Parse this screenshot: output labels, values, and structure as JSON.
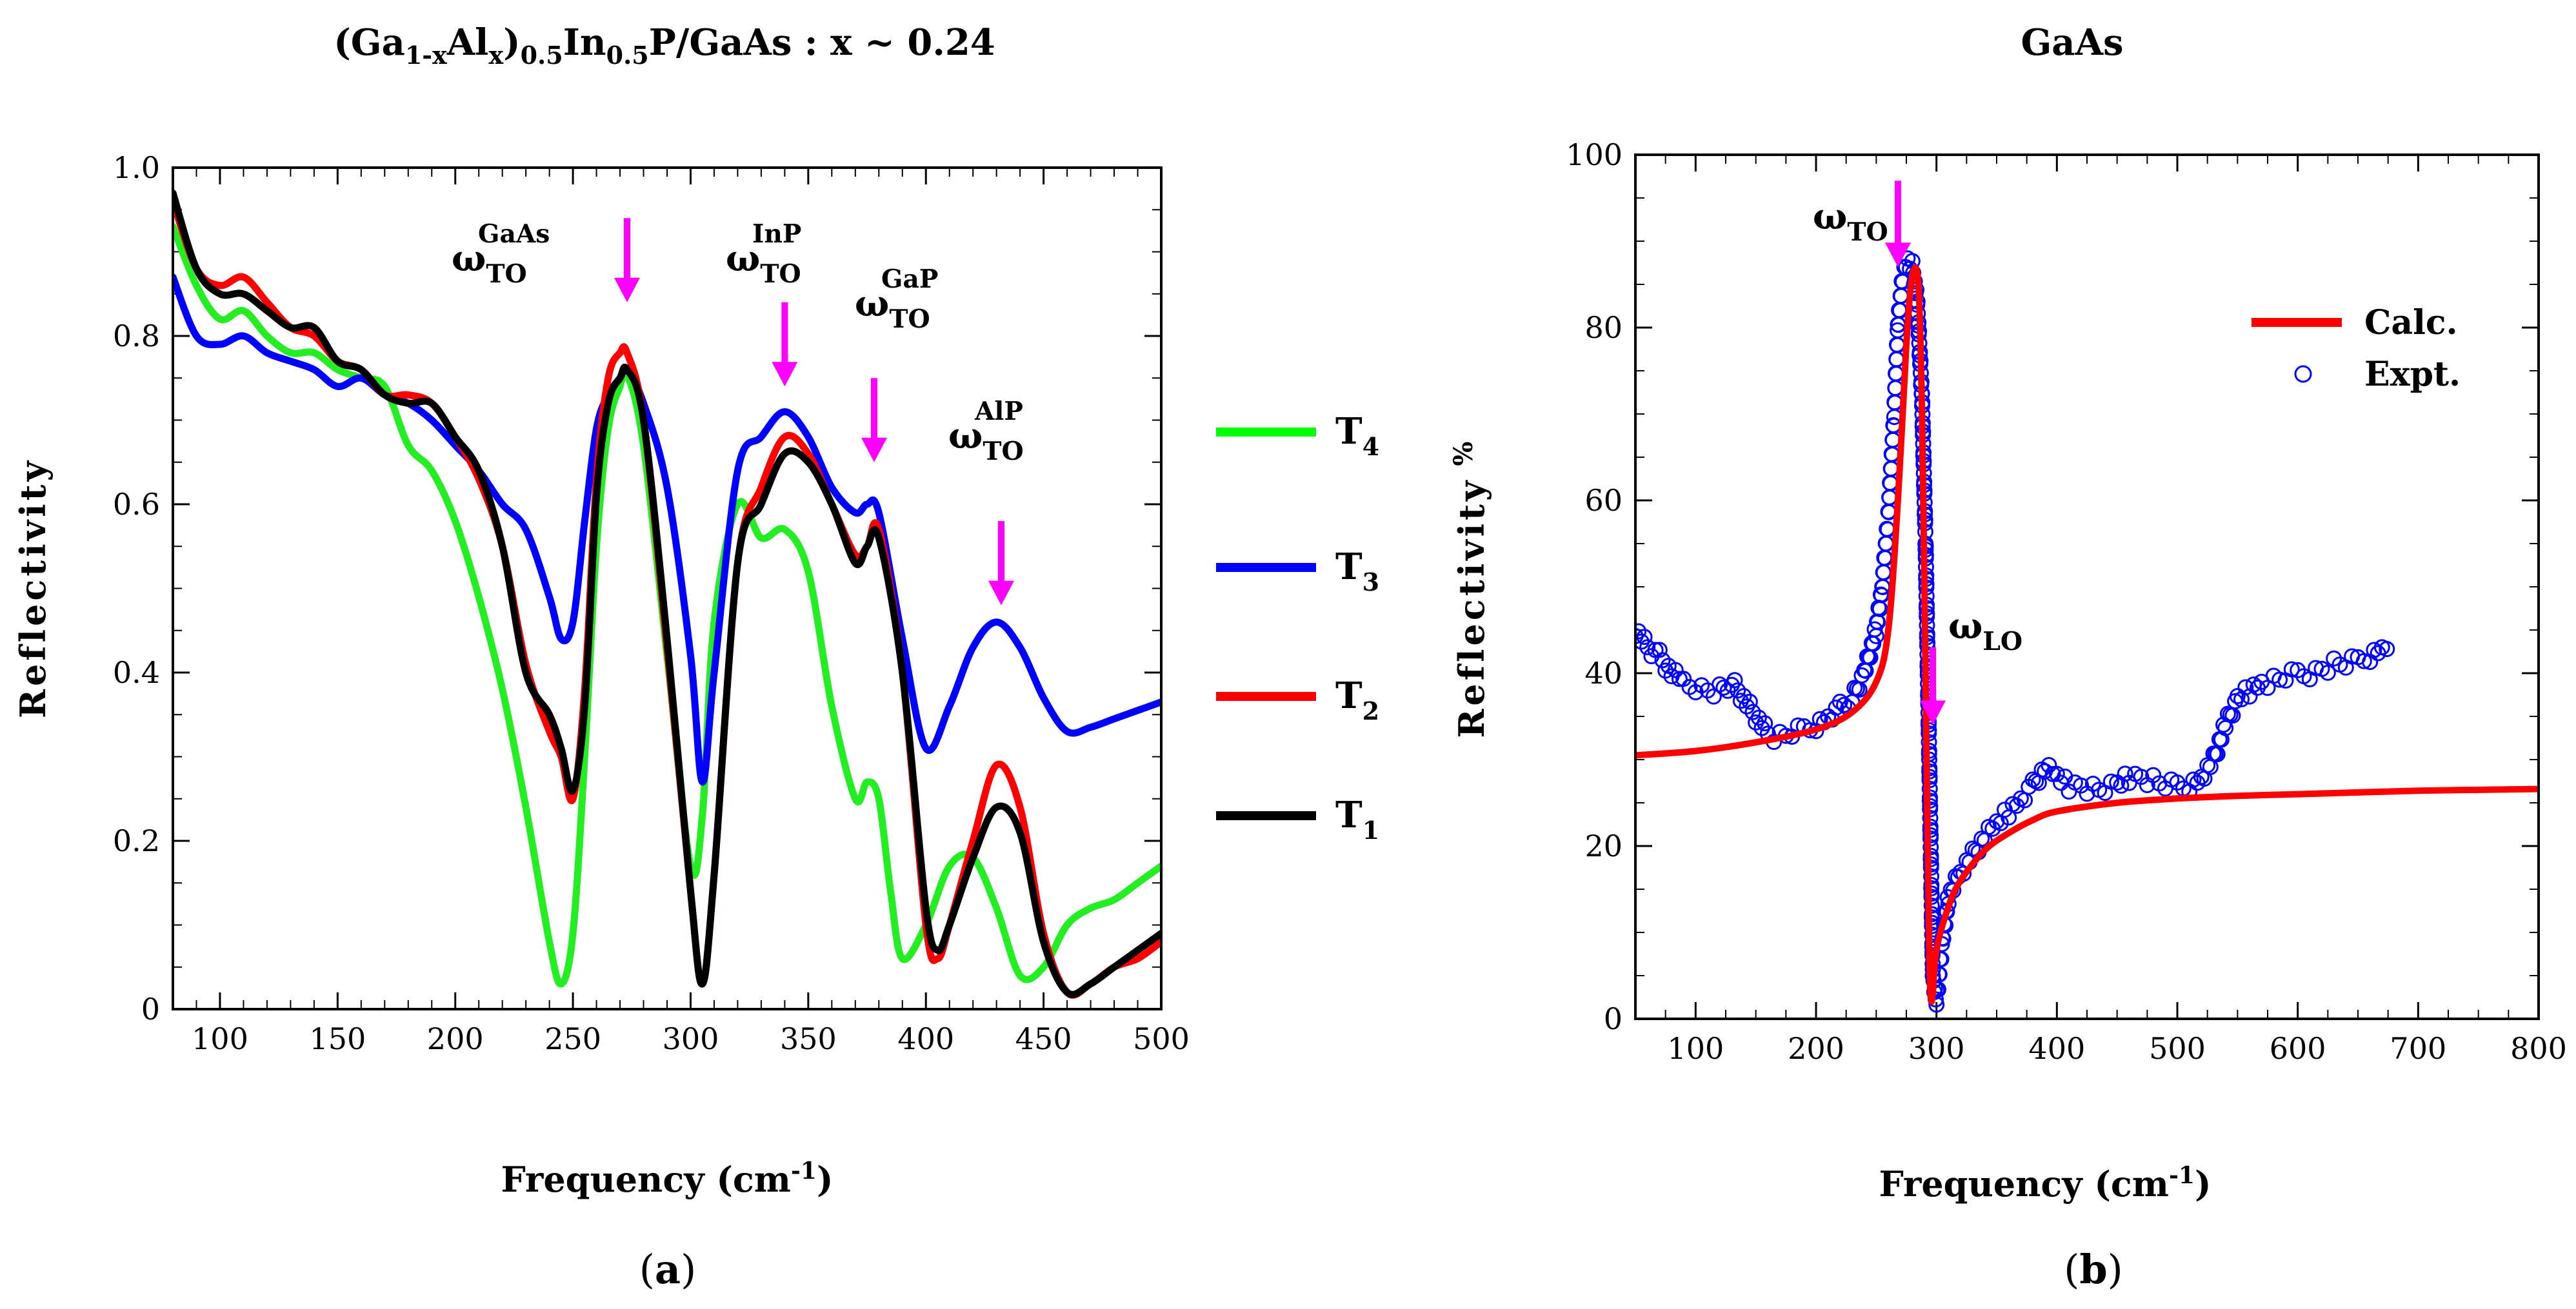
{
  "chart_data": [
    {
      "type": "line",
      "title": "(Ga1-xAlx)0.5In0.5P/GaAs : x ~ 0.24",
      "title_parts": {
        "a": "(Ga",
        "b": "1-x",
        "c": "Al",
        "d": "x",
        "e": ")",
        "f": "0.5",
        "g": "In",
        "h": "0.5",
        "i": "P/GaAs : x ~ 0.24"
      },
      "xlabel": "Frequency (cm-1)",
      "xlabel_parts": {
        "main": "Frequency (cm",
        "sup": "-1",
        "end": ")"
      },
      "ylabel": "Reflectivity",
      "xlim": [
        80,
        500
      ],
      "ylim": [
        0,
        1.0
      ],
      "xticks": [
        100,
        150,
        200,
        250,
        300,
        350,
        400,
        450,
        500
      ],
      "yticks": [
        "0",
        "0.2",
        "0.4",
        "0.6",
        "0.8",
        "1.0"
      ],
      "ytick_values": [
        0,
        0.2,
        0.4,
        0.6,
        0.8,
        1.0
      ],
      "panel_label": "(a)",
      "panel_letter": "a",
      "annotations": [
        {
          "base": "ω",
          "sub": "TO",
          "sup": "GaAs",
          "arrow_x": 273,
          "arrow_from": 0.94,
          "arrow_to": 0.84
        },
        {
          "base": "ω",
          "sub": "TO",
          "sup": "InP",
          "arrow_x": 340,
          "arrow_from": 0.84,
          "arrow_to": 0.74
        },
        {
          "base": "ω",
          "sub": "TO",
          "sup": "GaP",
          "arrow_x": 378,
          "arrow_from": 0.75,
          "arrow_to": 0.65
        },
        {
          "base": "ω",
          "sub": "TO",
          "sup": "AlP",
          "arrow_x": 432,
          "arrow_from": 0.58,
          "arrow_to": 0.48
        }
      ],
      "arrow_color": "#ff00ff",
      "legend": [
        {
          "name": "T",
          "sub": "4",
          "color": "#00ff00"
        },
        {
          "name": "T",
          "sub": "3",
          "color": "#0000ff"
        },
        {
          "name": "T",
          "sub": "2",
          "color": "#ff0000"
        },
        {
          "name": "T",
          "sub": "1",
          "color": "#000000"
        }
      ],
      "series": [
        {
          "name": "T4",
          "color": "#22ee22",
          "x": [
            80,
            90,
            100,
            110,
            120,
            130,
            140,
            150,
            160,
            170,
            180,
            190,
            200,
            210,
            220,
            230,
            240,
            245,
            250,
            255,
            260,
            265,
            270,
            273,
            280,
            290,
            300,
            305,
            310,
            320,
            330,
            340,
            350,
            360,
            370,
            375,
            380,
            385,
            390,
            400,
            410,
            420,
            430,
            440,
            450,
            460,
            470,
            480,
            490,
            500
          ],
          "y": [
            0.93,
            0.86,
            0.82,
            0.83,
            0.8,
            0.78,
            0.78,
            0.76,
            0.75,
            0.74,
            0.67,
            0.64,
            0.58,
            0.49,
            0.38,
            0.24,
            0.08,
            0.03,
            0.09,
            0.3,
            0.55,
            0.69,
            0.74,
            0.755,
            0.67,
            0.42,
            0.17,
            0.23,
            0.46,
            0.6,
            0.56,
            0.57,
            0.52,
            0.36,
            0.25,
            0.27,
            0.25,
            0.14,
            0.06,
            0.1,
            0.17,
            0.18,
            0.12,
            0.04,
            0.05,
            0.1,
            0.12,
            0.13,
            0.15,
            0.17
          ]
        },
        {
          "name": "T3",
          "color": "#0000ff",
          "x": [
            80,
            90,
            100,
            110,
            120,
            130,
            140,
            150,
            160,
            170,
            180,
            190,
            200,
            210,
            220,
            230,
            240,
            245,
            250,
            255,
            260,
            265,
            270,
            273,
            280,
            290,
            300,
            305,
            310,
            320,
            330,
            340,
            350,
            360,
            370,
            375,
            380,
            390,
            400,
            410,
            420,
            430,
            440,
            450,
            460,
            470,
            480,
            490,
            500
          ],
          "y": [
            0.87,
            0.8,
            0.79,
            0.8,
            0.78,
            0.77,
            0.76,
            0.74,
            0.75,
            0.73,
            0.72,
            0.7,
            0.67,
            0.64,
            0.6,
            0.57,
            0.49,
            0.44,
            0.46,
            0.58,
            0.69,
            0.73,
            0.75,
            0.76,
            0.72,
            0.62,
            0.42,
            0.27,
            0.4,
            0.64,
            0.68,
            0.71,
            0.68,
            0.62,
            0.59,
            0.6,
            0.59,
            0.44,
            0.31,
            0.36,
            0.43,
            0.46,
            0.43,
            0.37,
            0.33,
            0.335,
            0.345,
            0.355,
            0.365
          ]
        },
        {
          "name": "T2",
          "color": "#ff0000",
          "x": [
            80,
            90,
            100,
            110,
            120,
            130,
            140,
            150,
            160,
            170,
            180,
            190,
            200,
            210,
            220,
            230,
            240,
            245,
            250,
            255,
            260,
            265,
            270,
            273,
            280,
            290,
            300,
            305,
            310,
            320,
            330,
            340,
            350,
            360,
            370,
            375,
            380,
            390,
            400,
            405,
            410,
            420,
            430,
            440,
            450,
            460,
            470,
            480,
            490,
            500
          ],
          "y": [
            0.96,
            0.88,
            0.86,
            0.87,
            0.84,
            0.81,
            0.8,
            0.77,
            0.76,
            0.73,
            0.73,
            0.72,
            0.68,
            0.63,
            0.55,
            0.41,
            0.33,
            0.3,
            0.25,
            0.38,
            0.63,
            0.75,
            0.78,
            0.78,
            0.7,
            0.43,
            0.14,
            0.03,
            0.16,
            0.53,
            0.62,
            0.68,
            0.66,
            0.6,
            0.54,
            0.55,
            0.57,
            0.4,
            0.1,
            0.06,
            0.1,
            0.2,
            0.29,
            0.24,
            0.09,
            0.02,
            0.03,
            0.05,
            0.06,
            0.08
          ]
        },
        {
          "name": "T1",
          "color": "#000000",
          "x": [
            80,
            90,
            100,
            110,
            120,
            130,
            140,
            150,
            160,
            170,
            180,
            190,
            200,
            210,
            220,
            230,
            240,
            245,
            250,
            255,
            260,
            265,
            270,
            273,
            280,
            290,
            300,
            305,
            310,
            320,
            330,
            340,
            350,
            360,
            370,
            375,
            380,
            390,
            400,
            405,
            410,
            420,
            430,
            440,
            450,
            460,
            470,
            480,
            490,
            500
          ],
          "y": [
            0.97,
            0.88,
            0.85,
            0.85,
            0.83,
            0.81,
            0.81,
            0.77,
            0.76,
            0.73,
            0.72,
            0.72,
            0.68,
            0.64,
            0.55,
            0.4,
            0.35,
            0.31,
            0.26,
            0.36,
            0.61,
            0.72,
            0.75,
            0.76,
            0.7,
            0.44,
            0.14,
            0.03,
            0.16,
            0.53,
            0.6,
            0.66,
            0.65,
            0.6,
            0.53,
            0.55,
            0.56,
            0.4,
            0.12,
            0.07,
            0.1,
            0.18,
            0.24,
            0.21,
            0.08,
            0.02,
            0.03,
            0.05,
            0.07,
            0.09
          ]
        }
      ]
    },
    {
      "type": "line",
      "title": "GaAs",
      "xlabel": "Frequency (cm-1)",
      "xlabel_parts": {
        "main": "Frequency (cm",
        "sup": "-1",
        "end": ")"
      },
      "ylabel": "Reflectivity %",
      "ylabel_parts": {
        "main": "Reflectivity",
        "unit": "%"
      },
      "xlim": [
        50,
        800
      ],
      "ylim": [
        0,
        100
      ],
      "xticks": [
        100,
        200,
        300,
        400,
        500,
        600,
        700,
        800
      ],
      "yticks": [
        "0",
        "20",
        "40",
        "60",
        "80",
        "100"
      ],
      "ytick_values": [
        0,
        20,
        40,
        60,
        80,
        100
      ],
      "panel_label": "(b)",
      "panel_letter": "b",
      "annotations": [
        {
          "base": "ω",
          "sub": "TO",
          "arrow_x": 268,
          "arrow_from": 97,
          "arrow_to": 87
        },
        {
          "base": "ω",
          "sub": "LO",
          "arrow_x": 297,
          "arrow_from": 43,
          "arrow_to": 34
        }
      ],
      "arrow_color": "#ff00ff",
      "legend": [
        {
          "name": "Calc.",
          "color": "#ff0000",
          "marker": "line"
        },
        {
          "name": "Expt.",
          "color": "#0000ff",
          "marker": "circle"
        }
      ],
      "series": [
        {
          "name": "Calc.",
          "color": "#ff0000",
          "x": [
            50,
            100,
            150,
            200,
            230,
            250,
            260,
            268,
            275,
            280,
            285,
            288,
            290,
            292,
            294,
            296,
            300,
            310,
            320,
            340,
            360,
            380,
            400,
            450,
            500,
            550,
            600,
            650,
            700,
            750,
            800
          ],
          "y": [
            30.5,
            31.0,
            32.0,
            33.5,
            35.5,
            39.0,
            45.0,
            60.0,
            78.0,
            86.0,
            85.0,
            70.0,
            50.0,
            28.0,
            8.0,
            2.0,
            8.0,
            13.0,
            16.0,
            19.5,
            21.5,
            23.0,
            24.0,
            25.0,
            25.5,
            25.8,
            26.0,
            26.2,
            26.4,
            26.5,
            26.6
          ]
        },
        {
          "name": "Expt.",
          "color": "#0000ff",
          "x": [
            50,
            60,
            70,
            80,
            90,
            100,
            110,
            120,
            130,
            140,
            150,
            160,
            170,
            180,
            190,
            200,
            210,
            220,
            230,
            240,
            250,
            255,
            260,
            265,
            268,
            272,
            276,
            280,
            284,
            288,
            291,
            294,
            297,
            300,
            305,
            310,
            320,
            330,
            340,
            350,
            360,
            370,
            380,
            390,
            400,
            410,
            420,
            430,
            440,
            450,
            460,
            470,
            480,
            490,
            500,
            510,
            520,
            530,
            540,
            550,
            560,
            570,
            580,
            590,
            600,
            610,
            620,
            630,
            640,
            650,
            660,
            670,
            678
          ],
          "y": [
            45,
            43,
            42,
            40,
            39,
            38.5,
            38,
            38,
            39,
            37,
            35,
            33,
            32.5,
            33,
            33.5,
            34,
            35,
            36,
            37,
            40,
            45,
            50,
            58,
            70,
            80,
            86,
            88,
            87,
            83,
            72,
            55,
            30,
            5,
            2,
            9,
            14,
            17,
            19,
            21,
            22.5,
            24,
            25.5,
            27,
            29,
            28,
            27,
            27,
            26.5,
            26.5,
            27,
            28,
            28,
            27.5,
            27,
            27,
            27,
            28,
            30,
            34,
            37,
            38,
            39,
            39,
            39.5,
            40,
            40,
            40.5,
            41,
            41,
            41.5,
            42,
            43,
            44
          ]
        }
      ]
    }
  ]
}
